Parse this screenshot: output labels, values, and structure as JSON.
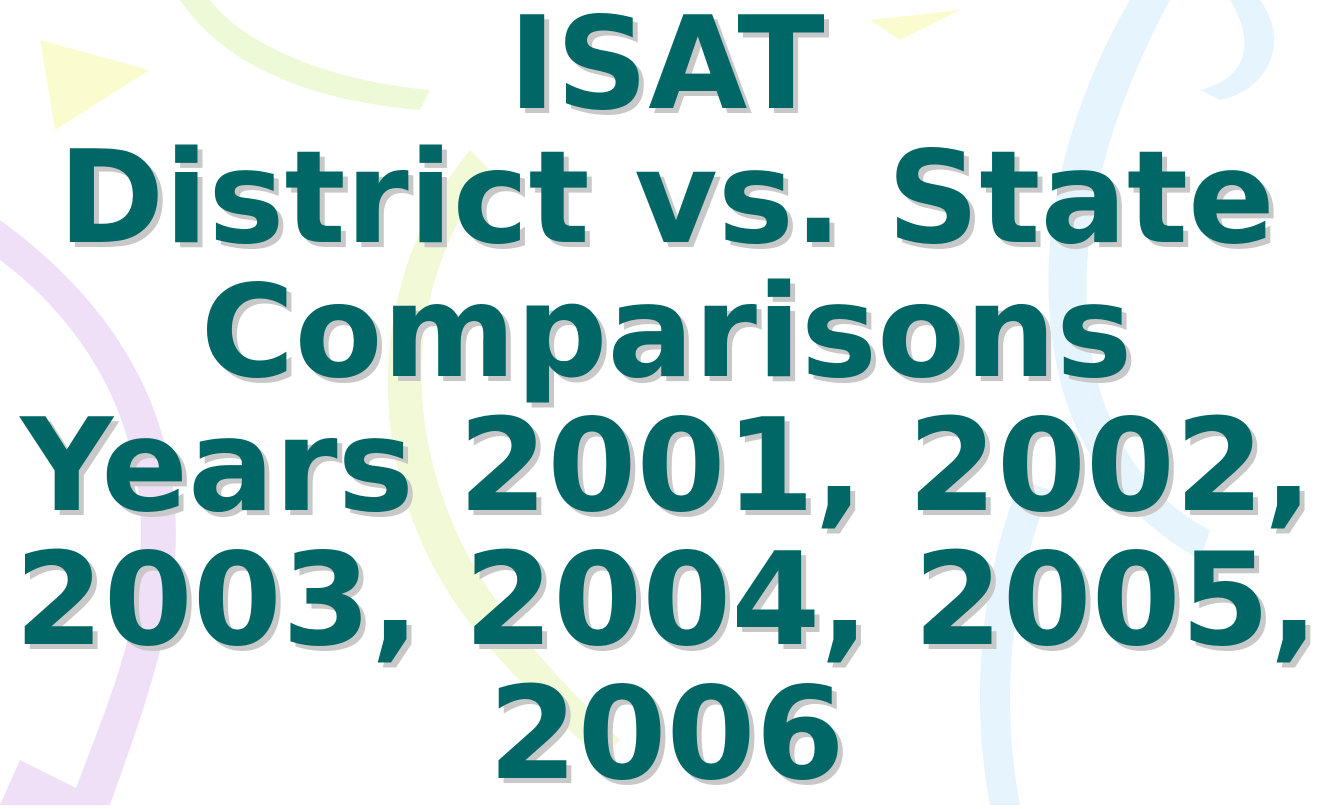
{
  "slide": {
    "title_lines": [
      "ISAT",
      "District vs. State",
      "Comparisons",
      "Years 2001, 2002,",
      "2003, 2004, 2005,",
      "2006"
    ]
  }
}
